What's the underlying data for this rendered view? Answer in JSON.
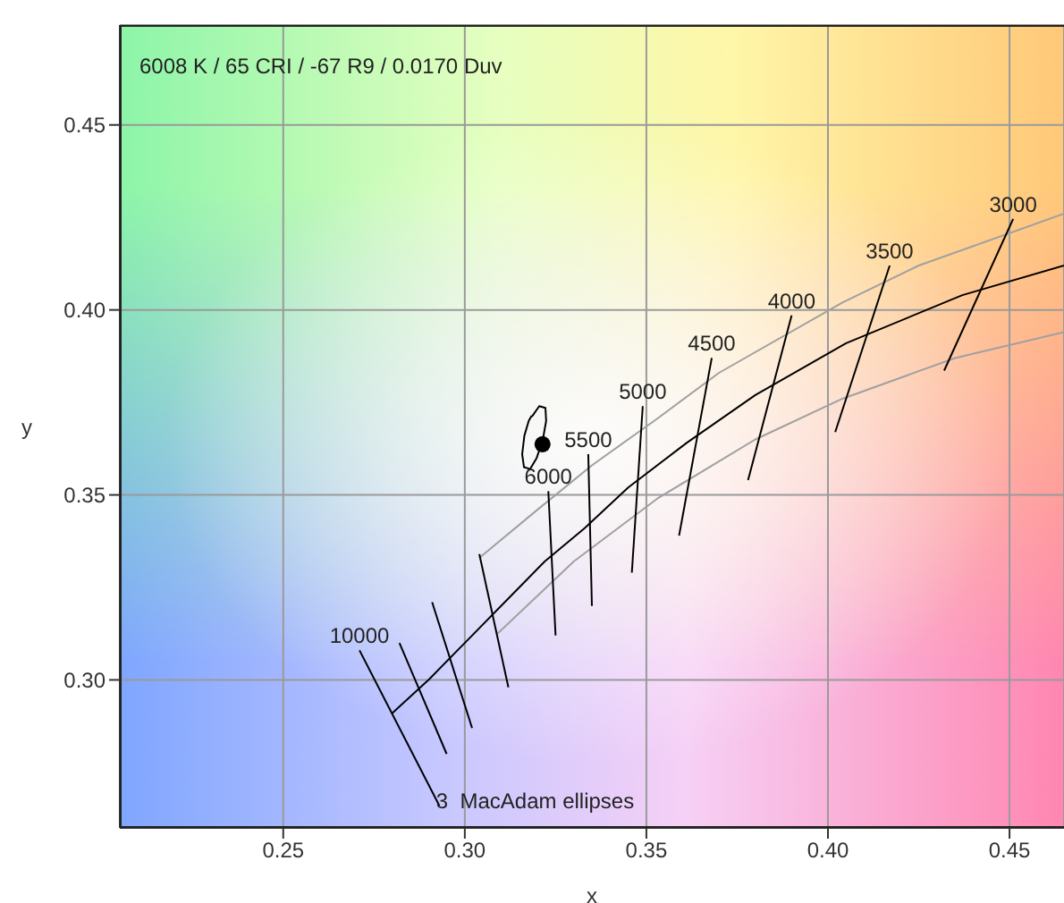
{
  "chart_data": {
    "type": "line",
    "xlabel": "x",
    "ylabel": "y",
    "xlim": [
      0.205,
      0.465
    ],
    "ylim": [
      0.26,
      0.477
    ],
    "xticks": [
      0.25,
      {
        "value": 0.3,
        "label": "0.30"
      },
      0.35,
      {
        "value": 0.4,
        "label": "0.40"
      },
      0.45
    ],
    "yticks": [
      {
        "value": 0.3,
        "label": "0.30"
      },
      0.35,
      {
        "value": 0.4,
        "label": "0.40"
      },
      0.45
    ],
    "grid": true,
    "series": [
      {
        "color": "#a0a0a0",
        "x": [
          0.304,
          0.32,
          0.335,
          0.353,
          0.37,
          0.404,
          0.425,
          0.465
        ],
        "values": [
          0.333,
          0.346,
          0.358,
          0.3706,
          0.383,
          0.402,
          0.412,
          0.426
        ]
      },
      {
        "color": "#a0a0a0",
        "x": [
          0.309,
          0.33,
          0.353,
          0.38,
          0.404,
          0.435,
          0.465
        ],
        "values": [
          0.3125,
          0.332,
          0.349,
          0.365,
          0.376,
          0.387,
          0.394
        ]
      },
      {
        "color": "#000000",
        "x": [
          0.28,
          0.29,
          0.3,
          0.313,
          0.322,
          0.333,
          0.345,
          0.361,
          0.38,
          0.405,
          0.437,
          0.465
        ],
        "values": [
          0.291,
          0.3,
          0.31,
          0.323,
          0.332,
          0.341,
          0.352,
          0.364,
          0.377,
          0.391,
          0.404,
          0.412
        ]
      },
      {
        "name": "10000",
        "color": "#000000",
        "x": [
          0.271,
          0.293
        ],
        "values": [
          0.308,
          0.266
        ]
      },
      {
        "color": "#000000",
        "x": [
          0.282,
          0.295
        ],
        "values": [
          0.31,
          0.28
        ]
      },
      {
        "color": "#000000",
        "x": [
          0.291,
          0.302
        ],
        "values": [
          0.321,
          0.287
        ]
      },
      {
        "color": "#000000",
        "x": [
          0.304,
          0.312
        ],
        "values": [
          0.334,
          0.298
        ]
      },
      {
        "name": "6000",
        "color": "#000000",
        "x": [
          0.323,
          0.325
        ],
        "values": [
          0.351,
          0.312
        ]
      },
      {
        "name": "5500",
        "color": "#000000",
        "x": [
          0.334,
          0.335
        ],
        "values": [
          0.361,
          0.32
        ]
      },
      {
        "name": "5000",
        "color": "#000000",
        "x": [
          0.349,
          0.346
        ],
        "values": [
          0.374,
          0.329
        ]
      },
      {
        "name": "4500",
        "color": "#000000",
        "x": [
          0.368,
          0.359
        ],
        "values": [
          0.387,
          0.339
        ]
      },
      {
        "name": "4000",
        "color": "#000000",
        "x": [
          0.39,
          0.378
        ],
        "values": [
          0.3985,
          0.354
        ]
      },
      {
        "name": "3500",
        "color": "#000000",
        "x": [
          0.417,
          0.402
        ],
        "values": [
          0.412,
          0.367
        ]
      },
      {
        "name": "3000",
        "color": "#000000",
        "x": [
          0.451,
          0.432
        ],
        "values": [
          0.4246,
          0.3836
        ]
      },
      {
        "color": "#000000",
        "x": [
          0.3185,
          0.3205,
          0.3222,
          0.3224,
          0.3215,
          0.3198,
          0.318,
          0.3163,
          0.3158,
          0.3164,
          0.3176,
          0.3184
        ],
        "values": [
          0.3712,
          0.374,
          0.3735,
          0.37,
          0.365,
          0.36,
          0.357,
          0.3575,
          0.361,
          0.366,
          0.37,
          0.3714
        ]
      },
      {
        "type": "scatter",
        "color": "#000000",
        "marker": "circle",
        "x": [
          0.3214
        ],
        "values": [
          0.3637
        ]
      }
    ],
    "annotations": [
      "6008 K / 65 CRI / -67 R9 / 0.0170 Duv",
      "3  MacAdam ellipses"
    ]
  }
}
